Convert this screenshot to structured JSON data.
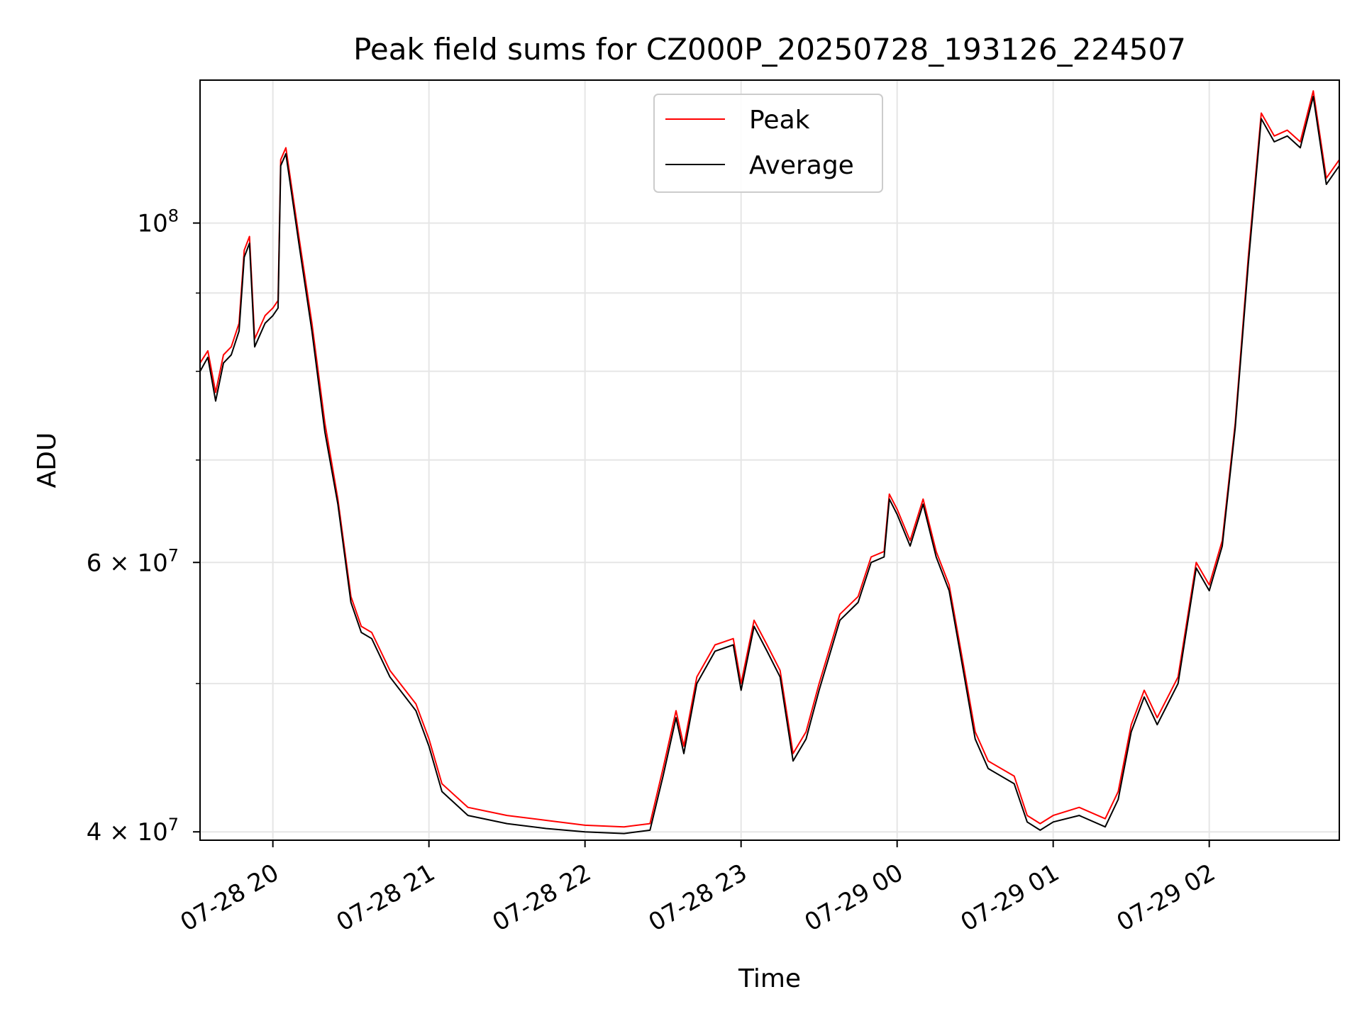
{
  "chart_data": {
    "type": "line",
    "title": "Peak field sums for CZ000P_20250728_193126_224507",
    "xlabel": "Time",
    "ylabel": "ADU",
    "y_scale": "log",
    "grid": true,
    "legend_position": "upper center",
    "xlim": [
      "2025-07-28 19:32",
      "2025-07-29 02:50"
    ],
    "ylim": [
      39500000,
      124000000
    ],
    "x_ticks": [
      {
        "time": "2025-07-28 20:00",
        "label": "07-28 20"
      },
      {
        "time": "2025-07-28 21:00",
        "label": "07-28 21"
      },
      {
        "time": "2025-07-28 22:00",
        "label": "07-28 22"
      },
      {
        "time": "2025-07-28 23:00",
        "label": "07-28 23"
      },
      {
        "time": "2025-07-29 00:00",
        "label": "07-29 00"
      },
      {
        "time": "2025-07-29 01:00",
        "label": "07-29 01"
      },
      {
        "time": "2025-07-29 02:00",
        "label": "07-29 02"
      }
    ],
    "y_ticks": [
      {
        "value": 40000000,
        "label": "4×10⁷",
        "base": "4 × 10",
        "exp": "7"
      },
      {
        "value": 60000000,
        "label": "6×10⁷",
        "base": "6 × 10",
        "exp": "7"
      },
      {
        "value": 100000000,
        "label": "10⁸",
        "base": "10",
        "exp": "8"
      }
    ],
    "y_minor_ticks": [
      50000000,
      70000000,
      80000000,
      90000000
    ],
    "series": [
      {
        "name": "Peak",
        "color": "#ff0000",
        "points": [
          [
            "2025-07-28 19:32",
            81000000
          ],
          [
            "2025-07-28 19:35",
            82500000
          ],
          [
            "2025-07-28 19:38",
            77500000
          ],
          [
            "2025-07-28 19:41",
            82000000
          ],
          [
            "2025-07-28 19:44",
            83000000
          ],
          [
            "2025-07-28 19:47",
            86000000
          ],
          [
            "2025-07-28 19:49",
            96000000
          ],
          [
            "2025-07-28 19:51",
            98000000
          ],
          [
            "2025-07-28 19:53",
            84000000
          ],
          [
            "2025-07-28 19:57",
            87000000
          ],
          [
            "2025-07-28 20:00",
            88000000
          ],
          [
            "2025-07-28 20:02",
            89000000
          ],
          [
            "2025-07-28 20:03",
            110000000
          ],
          [
            "2025-07-28 20:05",
            112000000
          ],
          [
            "2025-07-28 20:10",
            98000000
          ],
          [
            "2025-07-28 20:15",
            86000000
          ],
          [
            "2025-07-28 20:20",
            74000000
          ],
          [
            "2025-07-28 20:25",
            66000000
          ],
          [
            "2025-07-28 20:30",
            57000000
          ],
          [
            "2025-07-28 20:34",
            54500000
          ],
          [
            "2025-07-28 20:38",
            54000000
          ],
          [
            "2025-07-28 20:45",
            51000000
          ],
          [
            "2025-07-28 20:55",
            48500000
          ],
          [
            "2025-07-28 21:00",
            46000000
          ],
          [
            "2025-07-28 21:05",
            43000000
          ],
          [
            "2025-07-28 21:15",
            41500000
          ],
          [
            "2025-07-28 21:30",
            41000000
          ],
          [
            "2025-07-28 21:45",
            40700000
          ],
          [
            "2025-07-28 22:00",
            40400000
          ],
          [
            "2025-07-28 22:15",
            40300000
          ],
          [
            "2025-07-28 22:25",
            40500000
          ],
          [
            "2025-07-28 22:30",
            44000000
          ],
          [
            "2025-07-28 22:35",
            48000000
          ],
          [
            "2025-07-28 22:38",
            45500000
          ],
          [
            "2025-07-28 22:43",
            50500000
          ],
          [
            "2025-07-28 22:50",
            53000000
          ],
          [
            "2025-07-28 22:57",
            53500000
          ],
          [
            "2025-07-28 23:00",
            50000000
          ],
          [
            "2025-07-28 23:05",
            55000000
          ],
          [
            "2025-07-28 23:10",
            53000000
          ],
          [
            "2025-07-28 23:15",
            51000000
          ],
          [
            "2025-07-28 23:20",
            45000000
          ],
          [
            "2025-07-28 23:25",
            46500000
          ],
          [
            "2025-07-28 23:30",
            50000000
          ],
          [
            "2025-07-28 23:38",
            55500000
          ],
          [
            "2025-07-28 23:45",
            57000000
          ],
          [
            "2025-07-28 23:50",
            60500000
          ],
          [
            "2025-07-28 23:55",
            61000000
          ],
          [
            "2025-07-28 23:57",
            66500000
          ],
          [
            "2025-07-29 00:00",
            65000000
          ],
          [
            "2025-07-29 00:05",
            62000000
          ],
          [
            "2025-07-29 00:10",
            66000000
          ],
          [
            "2025-07-29 00:15",
            61000000
          ],
          [
            "2025-07-29 00:20",
            58000000
          ],
          [
            "2025-07-29 00:25",
            52000000
          ],
          [
            "2025-07-29 00:30",
            46500000
          ],
          [
            "2025-07-29 00:35",
            44500000
          ],
          [
            "2025-07-29 00:45",
            43500000
          ],
          [
            "2025-07-29 00:50",
            41000000
          ],
          [
            "2025-07-29 00:55",
            40500000
          ],
          [
            "2025-07-29 01:00",
            41000000
          ],
          [
            "2025-07-29 01:10",
            41500000
          ],
          [
            "2025-07-29 01:20",
            40800000
          ],
          [
            "2025-07-29 01:25",
            42500000
          ],
          [
            "2025-07-29 01:30",
            47000000
          ],
          [
            "2025-07-29 01:35",
            49500000
          ],
          [
            "2025-07-29 01:40",
            47500000
          ],
          [
            "2025-07-29 01:48",
            50500000
          ],
          [
            "2025-07-29 01:55",
            60000000
          ],
          [
            "2025-07-29 02:00",
            58000000
          ],
          [
            "2025-07-29 02:05",
            62000000
          ],
          [
            "2025-07-29 02:10",
            74000000
          ],
          [
            "2025-07-29 02:15",
            95000000
          ],
          [
            "2025-07-29 02:20",
            118000000
          ],
          [
            "2025-07-29 02:25",
            114000000
          ],
          [
            "2025-07-29 02:30",
            115000000
          ],
          [
            "2025-07-29 02:35",
            113000000
          ],
          [
            "2025-07-29 02:40",
            122000000
          ],
          [
            "2025-07-29 02:45",
            107000000
          ],
          [
            "2025-07-29 02:50",
            110000000
          ]
        ]
      },
      {
        "name": "Average",
        "color": "#000000",
        "points": [
          [
            "2025-07-28 19:32",
            80000000
          ],
          [
            "2025-07-28 19:35",
            81700000
          ],
          [
            "2025-07-28 19:38",
            76500000
          ],
          [
            "2025-07-28 19:41",
            81000000
          ],
          [
            "2025-07-28 19:44",
            82000000
          ],
          [
            "2025-07-28 19:47",
            85000000
          ],
          [
            "2025-07-28 19:49",
            95000000
          ],
          [
            "2025-07-28 19:51",
            97000000
          ],
          [
            "2025-07-28 19:53",
            83000000
          ],
          [
            "2025-07-28 19:57",
            86000000
          ],
          [
            "2025-07-28 20:00",
            87000000
          ],
          [
            "2025-07-28 20:02",
            88000000
          ],
          [
            "2025-07-28 20:03",
            109000000
          ],
          [
            "2025-07-28 20:05",
            111000000
          ],
          [
            "2025-07-28 20:10",
            97000000
          ],
          [
            "2025-07-28 20:15",
            85000000
          ],
          [
            "2025-07-28 20:20",
            73000000
          ],
          [
            "2025-07-28 20:25",
            65500000
          ],
          [
            "2025-07-28 20:30",
            56500000
          ],
          [
            "2025-07-28 20:34",
            54000000
          ],
          [
            "2025-07-28 20:38",
            53500000
          ],
          [
            "2025-07-28 20:45",
            50500000
          ],
          [
            "2025-07-28 20:55",
            48000000
          ],
          [
            "2025-07-28 21:00",
            45500000
          ],
          [
            "2025-07-28 21:05",
            42500000
          ],
          [
            "2025-07-28 21:15",
            41000000
          ],
          [
            "2025-07-28 21:30",
            40500000
          ],
          [
            "2025-07-28 21:45",
            40200000
          ],
          [
            "2025-07-28 22:00",
            40000000
          ],
          [
            "2025-07-28 22:15",
            39900000
          ],
          [
            "2025-07-28 22:25",
            40100000
          ],
          [
            "2025-07-28 22:30",
            43500000
          ],
          [
            "2025-07-28 22:35",
            47500000
          ],
          [
            "2025-07-28 22:38",
            45000000
          ],
          [
            "2025-07-28 22:43",
            50000000
          ],
          [
            "2025-07-28 22:50",
            52500000
          ],
          [
            "2025-07-28 22:57",
            53000000
          ],
          [
            "2025-07-28 23:00",
            49500000
          ],
          [
            "2025-07-28 23:05",
            54500000
          ],
          [
            "2025-07-28 23:10",
            52500000
          ],
          [
            "2025-07-28 23:15",
            50500000
          ],
          [
            "2025-07-28 23:20",
            44500000
          ],
          [
            "2025-07-28 23:25",
            46000000
          ],
          [
            "2025-07-28 23:30",
            49500000
          ],
          [
            "2025-07-28 23:38",
            55000000
          ],
          [
            "2025-07-28 23:45",
            56500000
          ],
          [
            "2025-07-28 23:50",
            60000000
          ],
          [
            "2025-07-28 23:55",
            60500000
          ],
          [
            "2025-07-28 23:57",
            66000000
          ],
          [
            "2025-07-29 00:00",
            64500000
          ],
          [
            "2025-07-29 00:05",
            61500000
          ],
          [
            "2025-07-29 00:10",
            65500000
          ],
          [
            "2025-07-29 00:15",
            60500000
          ],
          [
            "2025-07-29 00:20",
            57500000
          ],
          [
            "2025-07-29 00:25",
            51500000
          ],
          [
            "2025-07-29 00:30",
            46000000
          ],
          [
            "2025-07-29 00:35",
            44000000
          ],
          [
            "2025-07-29 00:45",
            43000000
          ],
          [
            "2025-07-29 00:50",
            40600000
          ],
          [
            "2025-07-29 00:55",
            40100000
          ],
          [
            "2025-07-29 01:00",
            40600000
          ],
          [
            "2025-07-29 01:10",
            41000000
          ],
          [
            "2025-07-29 01:20",
            40300000
          ],
          [
            "2025-07-29 01:25",
            42000000
          ],
          [
            "2025-07-29 01:30",
            46500000
          ],
          [
            "2025-07-29 01:35",
            49000000
          ],
          [
            "2025-07-29 01:40",
            47000000
          ],
          [
            "2025-07-29 01:48",
            50000000
          ],
          [
            "2025-07-29 01:55",
            59500000
          ],
          [
            "2025-07-29 02:00",
            57500000
          ],
          [
            "2025-07-29 02:05",
            61500000
          ],
          [
            "2025-07-29 02:10",
            73500000
          ],
          [
            "2025-07-29 02:15",
            94000000
          ],
          [
            "2025-07-29 02:20",
            117000000
          ],
          [
            "2025-07-29 02:25",
            113000000
          ],
          [
            "2025-07-29 02:30",
            114000000
          ],
          [
            "2025-07-29 02:35",
            112000000
          ],
          [
            "2025-07-29 02:40",
            121000000
          ],
          [
            "2025-07-29 02:45",
            106000000
          ],
          [
            "2025-07-29 02:50",
            109000000
          ]
        ]
      }
    ]
  }
}
